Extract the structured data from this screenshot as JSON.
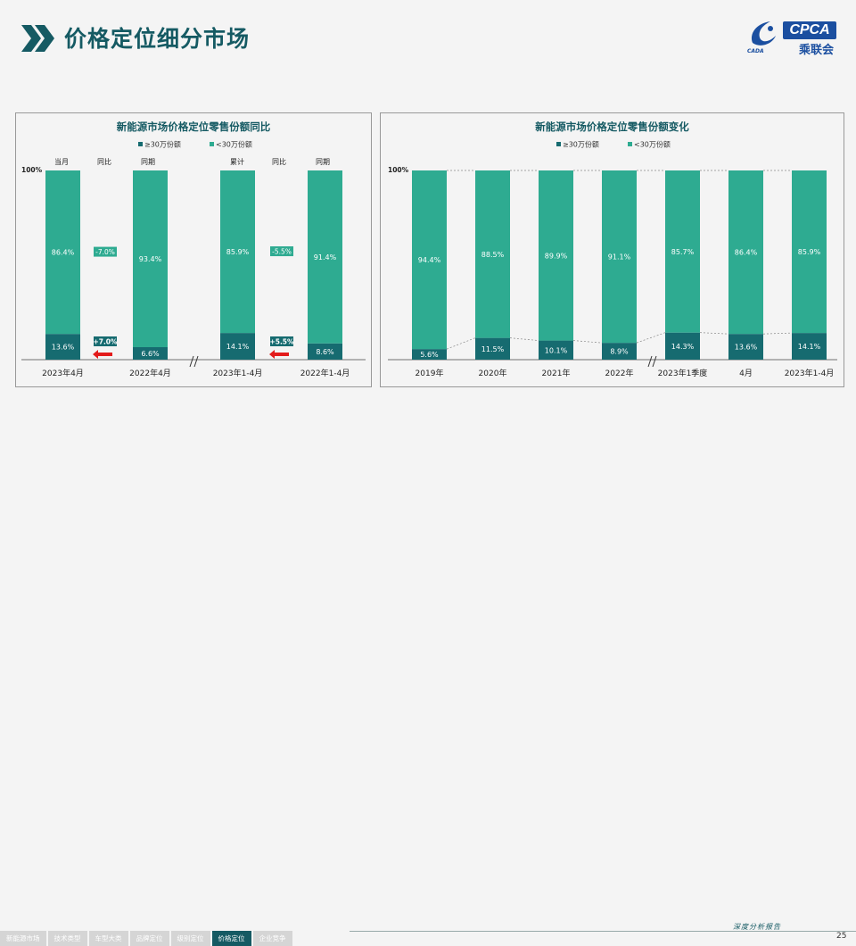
{
  "page_title": "价格定位细分市场",
  "logo": {
    "brand": "CPCA",
    "cn": "乘联会",
    "small": "CADA"
  },
  "footer": {
    "tabs": [
      "新能源市场",
      "技术类型",
      "车型大类",
      "品牌定位",
      "级别定位",
      "价格定位",
      "企业竞争"
    ],
    "active_tab": 5,
    "report": "深度分析报告",
    "page_number": "25"
  },
  "colors": {
    "high": "#166b70",
    "low": "#2eab91",
    "title": "#155a63",
    "arrow": "#e31b1b"
  },
  "chart_data": [
    {
      "type": "bar",
      "stacked": true,
      "title": "新能源市场价格定位零售份额同比",
      "legend": [
        "≥30万份额",
        "<30万份额"
      ],
      "legend_position": "top",
      "ylabel_top": "100%",
      "column_headers": [
        "当月",
        "同比",
        "同期",
        "累计",
        "同比",
        "同期"
      ],
      "categories": [
        "2023年4月",
        "2022年4月",
        "2023年1-4月",
        "2022年1-4月"
      ],
      "series": [
        {
          "name": "≥30万份额",
          "values": [
            13.6,
            6.6,
            14.1,
            8.6
          ],
          "labels": [
            "13.6%",
            "6.6%",
            "14.1%",
            "8.6%"
          ]
        },
        {
          "name": "<30万份额",
          "values": [
            86.4,
            93.4,
            85.9,
            91.4
          ],
          "labels": [
            "86.4%",
            "93.4%",
            "85.9%",
            "91.4%"
          ]
        }
      ],
      "yoy": [
        {
          "low": "-7.0%",
          "high": "+7.0%"
        },
        {
          "low": "-5.5%",
          "high": "+5.5%"
        }
      ],
      "ylim": [
        0,
        100
      ]
    },
    {
      "type": "bar",
      "stacked": true,
      "title": "新能源市场价格定位零售份额变化",
      "legend": [
        "≥30万份额",
        "<30万份额"
      ],
      "legend_position": "top",
      "ylabel_top": "100%",
      "categories": [
        "2019年",
        "2020年",
        "2021年",
        "2022年",
        "2023年1季度",
        "4月",
        "2023年1-4月"
      ],
      "series": [
        {
          "name": "≥30万份额",
          "values": [
            5.6,
            11.5,
            10.1,
            8.9,
            14.3,
            13.6,
            14.1
          ],
          "labels": [
            "5.6%",
            "11.5%",
            "10.1%",
            "8.9%",
            "14.3%",
            "13.6%",
            "14.1%"
          ]
        },
        {
          "name": "<30万份额",
          "values": [
            94.4,
            88.5,
            89.9,
            91.1,
            85.7,
            86.4,
            85.9
          ],
          "labels": [
            "94.4%",
            "88.5%",
            "89.9%",
            "91.1%",
            "85.7%",
            "86.4%",
            "85.9%"
          ]
        }
      ],
      "ylim": [
        0,
        100
      ]
    }
  ]
}
